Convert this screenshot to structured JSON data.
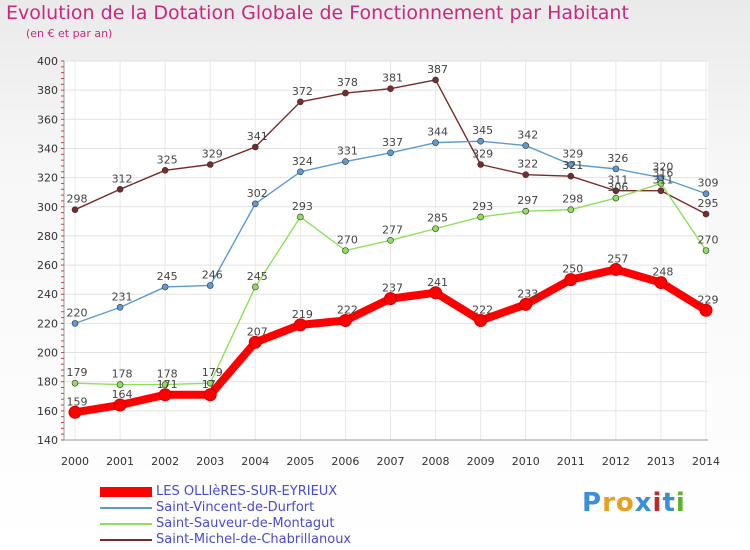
{
  "title": "Evolution de la Dotation Globale de Fonctionnement par Habitant",
  "subtitle": "(en € et par an)",
  "logo": {
    "text": "Proxiti",
    "colors": [
      "#3a8fd8",
      "#e8a020",
      "#e8a020",
      "#3a8fd8",
      "#c02828",
      "#3a8fd8",
      "#60b030"
    ]
  },
  "chart_data": {
    "type": "line",
    "x": [
      "2000",
      "2001",
      "2002",
      "2003",
      "2004",
      "2005",
      "2006",
      "2007",
      "2008",
      "2009",
      "2010",
      "2011",
      "2012",
      "2013",
      "2014"
    ],
    "ylim": [
      140,
      400
    ],
    "yticks": [
      140,
      160,
      180,
      200,
      220,
      240,
      260,
      280,
      300,
      320,
      340,
      360,
      380,
      400
    ],
    "grid": true,
    "legend_position": "bottom-left",
    "series": [
      {
        "name": "LES OLLIèRES-SUR-EYRIEUX",
        "color": "#ff0000",
        "values": [
          159,
          164,
          171,
          171,
          207,
          219,
          222,
          237,
          241,
          222,
          233,
          250,
          257,
          248,
          229
        ]
      },
      {
        "name": "Saint-Vincent-de-Durfort",
        "color": "#5b9bd5",
        "values": [
          220,
          231,
          245,
          246,
          302,
          324,
          331,
          337,
          344,
          345,
          342,
          329,
          326,
          320,
          309
        ]
      },
      {
        "name": "Saint-Sauveur-de-Montagut",
        "color": "#8ee05a",
        "values": [
          179,
          178,
          178,
          179,
          245,
          293,
          270,
          277,
          285,
          293,
          297,
          298,
          306,
          316,
          270
        ]
      },
      {
        "name": "Saint-Michel-de-Chabrillanoux",
        "color": "#7a2a2a",
        "values": [
          298,
          312,
          325,
          329,
          341,
          372,
          378,
          381,
          387,
          329,
          322,
          321,
          311,
          311,
          295
        ]
      }
    ]
  }
}
